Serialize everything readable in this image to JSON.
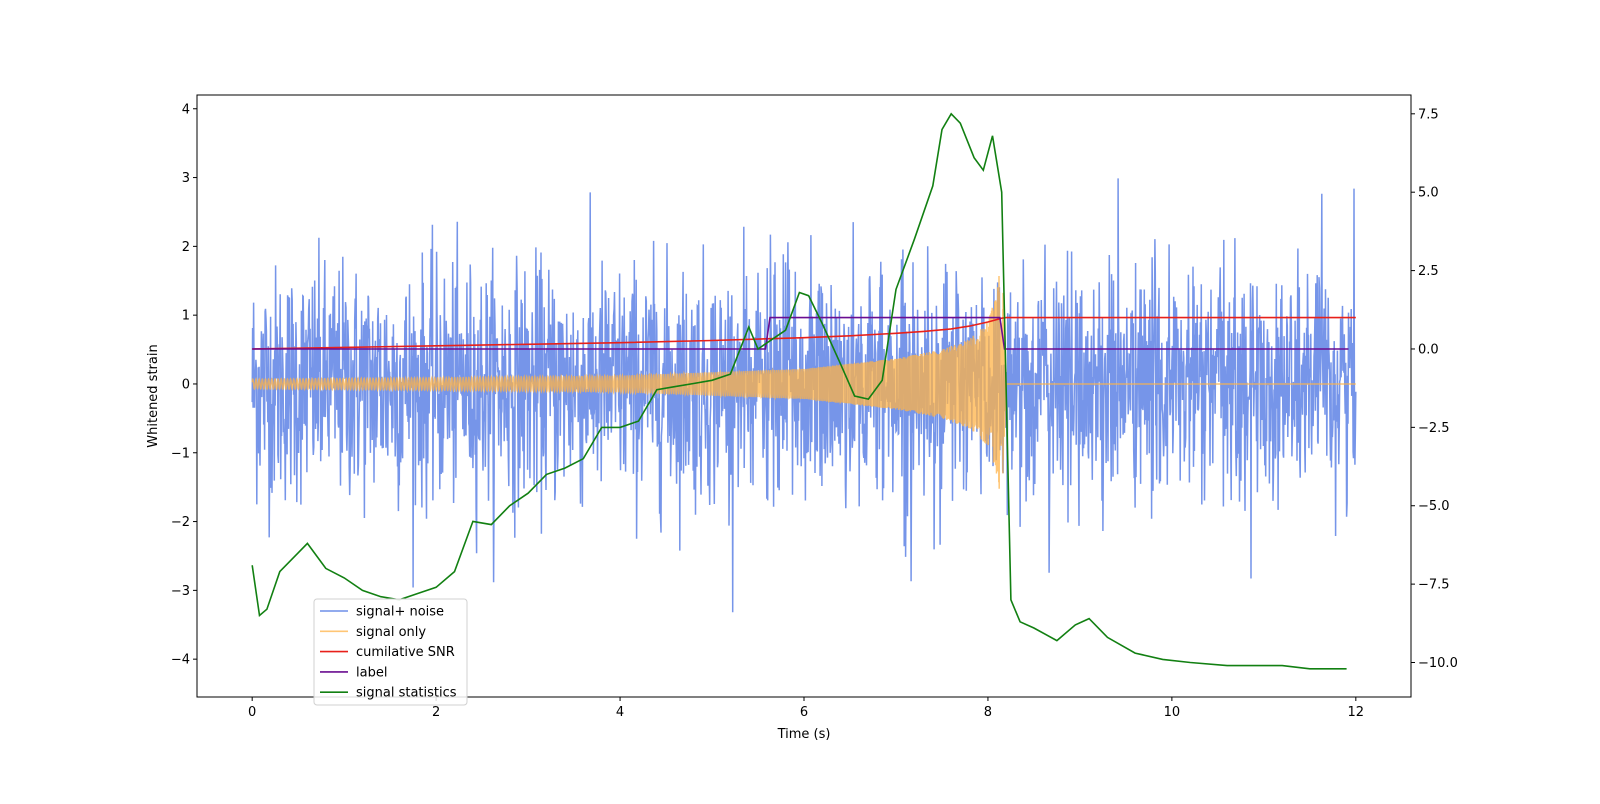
{
  "chart_data": {
    "type": "line",
    "xlabel": "Time (s)",
    "ylabel": "Whitened strain",
    "y2label": "",
    "xlim": [
      -0.6,
      12.6
    ],
    "ylim": [
      -4.55,
      4.2
    ],
    "y2lim": [
      -11.1,
      8.1
    ],
    "x_ticks": [
      0,
      2,
      4,
      6,
      8,
      10,
      12
    ],
    "x_tick_labels": [
      "0",
      "2",
      "4",
      "6",
      "8",
      "10",
      "12"
    ],
    "y_ticks": [
      -4,
      -3,
      -2,
      -1,
      0,
      1,
      2,
      3,
      4
    ],
    "y_tick_labels": [
      "−4",
      "−3",
      "−2",
      "−1",
      "0",
      "1",
      "2",
      "3",
      "4"
    ],
    "y2_ticks": [
      -10,
      -7.5,
      -5,
      -2.5,
      0,
      2.5,
      5,
      7.5
    ],
    "y2_tick_labels": [
      "−10.0",
      "−7.5",
      "−5.0",
      "−2.5",
      "0.0",
      "2.5",
      "5.0",
      "7.5"
    ],
    "grid": false,
    "legend_position": "lower-left",
    "series": [
      {
        "name": "signal+ noise",
        "color": "#6f8fe8",
        "axis": "left",
        "kind": "noise",
        "x_range": [
          0,
          12
        ],
        "amplitude_sigma": 0.85,
        "min": -3.4,
        "max": 3.8
      },
      {
        "name": "signal only",
        "color": "#ffb347",
        "axis": "left",
        "kind": "chirp",
        "x_range": [
          0,
          8.2
        ],
        "envelope": [
          [
            0,
            0.07
          ],
          [
            2,
            0.09
          ],
          [
            4,
            0.12
          ],
          [
            6,
            0.22
          ],
          [
            7,
            0.37
          ],
          [
            7.5,
            0.5
          ],
          [
            7.8,
            0.65
          ],
          [
            8.0,
            0.9
          ],
          [
            8.1,
            1.35
          ],
          [
            8.15,
            1.9
          ],
          [
            8.2,
            0
          ]
        ],
        "flat_after": [
          8.2,
          12
        ]
      },
      {
        "name": "cumilative SNR",
        "color": "#e8201a",
        "axis": "right",
        "x": [
          0,
          1,
          2,
          3,
          4,
          5,
          6,
          6.5,
          7,
          7.3,
          7.6,
          7.8,
          8.0,
          8.1,
          8.15,
          8.2,
          12
        ],
        "y": [
          0.0,
          0.05,
          0.1,
          0.15,
          0.2,
          0.27,
          0.36,
          0.42,
          0.5,
          0.56,
          0.64,
          0.73,
          0.86,
          0.94,
          0.98,
          1.0,
          1.0
        ]
      },
      {
        "name": "label",
        "color": "#6a0d91",
        "axis": "right",
        "x": [
          0,
          5.58,
          5.63,
          8.13,
          8.18,
          11.92
        ],
        "y": [
          0,
          0,
          1,
          1,
          0,
          0
        ]
      },
      {
        "name": "signal statistics",
        "color": "#128012",
        "axis": "right",
        "x": [
          0,
          0.08,
          0.16,
          0.3,
          0.5,
          0.6,
          0.8,
          1.0,
          1.2,
          1.4,
          1.6,
          1.8,
          2.0,
          2.2,
          2.4,
          2.6,
          2.8,
          3.0,
          3.2,
          3.4,
          3.6,
          3.8,
          4.0,
          4.2,
          4.4,
          4.6,
          4.8,
          5.0,
          5.2,
          5.4,
          5.5,
          5.6,
          5.8,
          5.95,
          6.05,
          6.2,
          6.4,
          6.55,
          6.7,
          6.85,
          7.0,
          7.2,
          7.4,
          7.5,
          7.6,
          7.7,
          7.85,
          7.95,
          8.05,
          8.15,
          8.25,
          8.35,
          8.5,
          8.75,
          8.95,
          9.1,
          9.3,
          9.6,
          9.9,
          10.2,
          10.6,
          11.0,
          11.2,
          11.5,
          11.9
        ],
        "y": [
          -6.9,
          -8.5,
          -8.3,
          -7.1,
          -6.5,
          -6.2,
          -7.0,
          -7.3,
          -7.7,
          -7.9,
          -8.0,
          -7.8,
          -7.6,
          -7.1,
          -5.5,
          -5.6,
          -5.0,
          -4.6,
          -4.0,
          -3.8,
          -3.5,
          -2.5,
          -2.5,
          -2.3,
          -1.3,
          -1.2,
          -1.1,
          -1.0,
          -0.8,
          0.7,
          0.0,
          0.2,
          0.6,
          1.8,
          1.7,
          0.8,
          -0.5,
          -1.5,
          -1.6,
          -1.0,
          1.9,
          3.5,
          5.2,
          7.0,
          7.5,
          7.2,
          6.1,
          5.7,
          6.8,
          5.0,
          -8.0,
          -8.7,
          -8.9,
          -9.3,
          -8.8,
          -8.6,
          -9.2,
          -9.7,
          -9.9,
          -10.0,
          -10.1,
          -10.1,
          -10.1,
          -10.2,
          -10.2
        ]
      }
    ]
  }
}
